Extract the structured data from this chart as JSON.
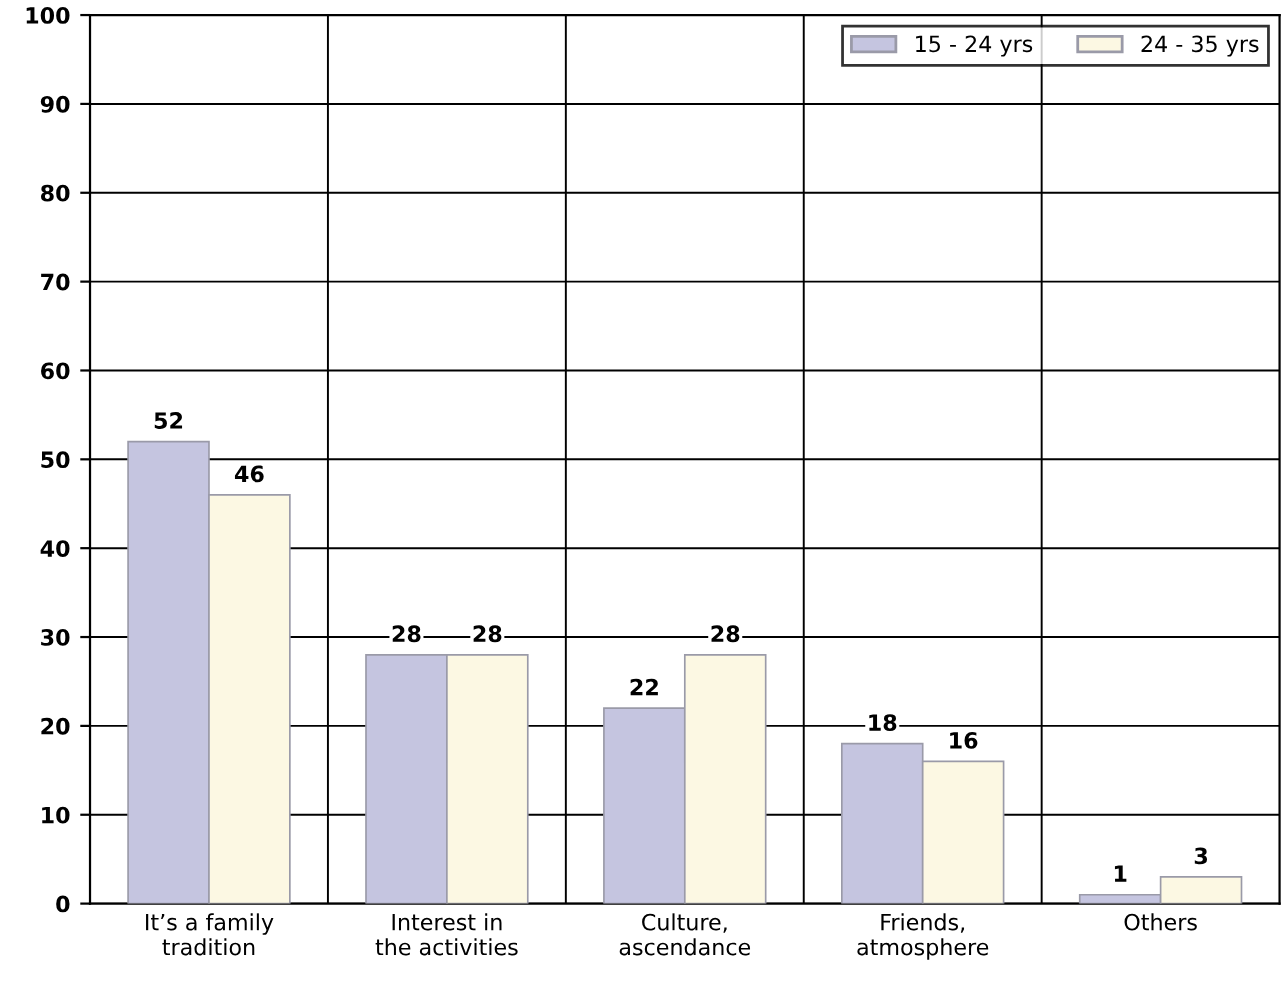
{
  "chart_data": {
    "type": "bar",
    "categories": [
      "It’s a family tradition",
      "Interest in the activities",
      "Culture, ascendance",
      "Friends, atmosphere",
      "Others"
    ],
    "series": [
      {
        "name": "15 - 24 yrs",
        "color": "#c5c5e0",
        "values": [
          52,
          28,
          22,
          18,
          1
        ]
      },
      {
        "name": "24 - 35 yrs",
        "color": "#fcf8e3",
        "values": [
          46,
          28,
          28,
          16,
          3
        ]
      }
    ],
    "ylim": [
      0,
      100
    ],
    "yticks": [
      0,
      10,
      20,
      30,
      40,
      50,
      60,
      70,
      80,
      90,
      100
    ],
    "grid": true,
    "legend": "top right",
    "data_labels": true
  }
}
